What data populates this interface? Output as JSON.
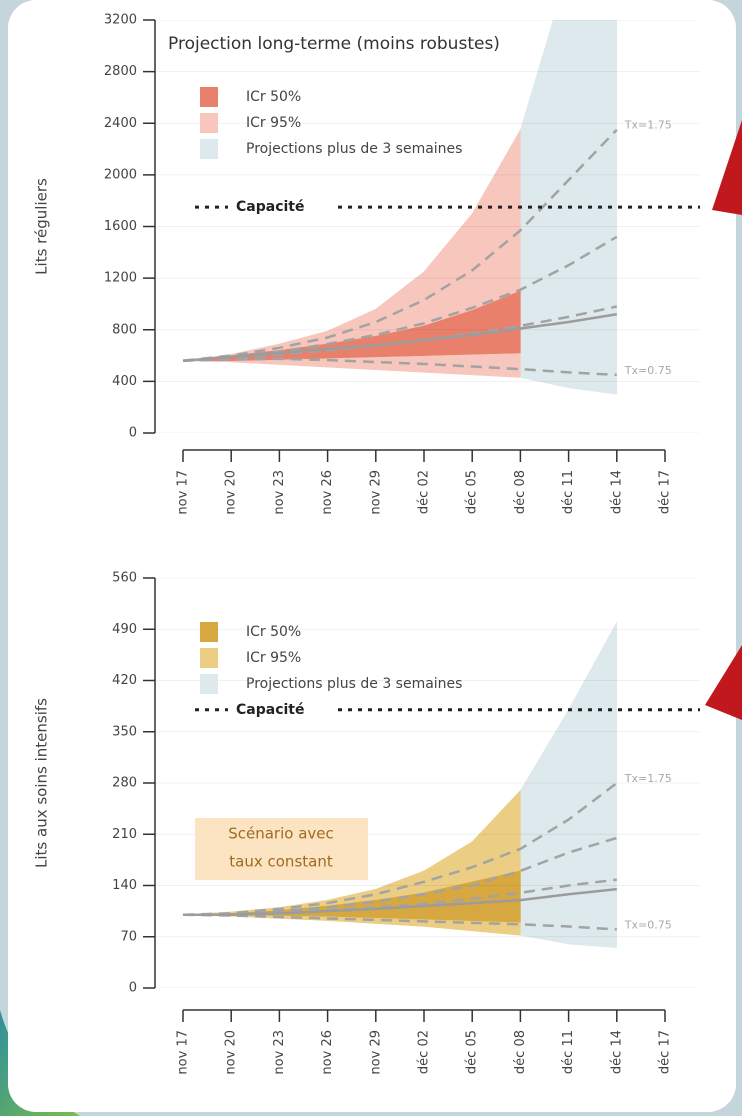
{
  "chart_data": [
    {
      "type": "area",
      "title": "Projection long-terme (moins robustes)",
      "ylabel": "Lits réguliers",
      "categories": [
        "nov 17",
        "nov 20",
        "nov 23",
        "nov 26",
        "nov 29",
        "déc 02",
        "déc 05",
        "déc 08",
        "déc 11",
        "déc 14",
        "déc 17"
      ],
      "ylim": [
        0,
        3200
      ],
      "yticks": [
        0,
        400,
        800,
        1200,
        1600,
        2000,
        2400,
        2800,
        3200
      ],
      "grid": true,
      "capacity": {
        "label": "Capacité",
        "value": 1750
      },
      "series": [
        {
          "name": "ICr 50%",
          "color": "#e9806c",
          "low": [
            560,
            560,
            570,
            580,
            590,
            600,
            610,
            620,
            null,
            null,
            null
          ],
          "high": [
            560,
            600,
            640,
            690,
            750,
            830,
            950,
            1100,
            null,
            null,
            null
          ]
        },
        {
          "name": "ICr 95%",
          "color": "#f7c6bd",
          "low": [
            560,
            550,
            530,
            510,
            490,
            470,
            450,
            430,
            null,
            null,
            null
          ],
          "high": [
            560,
            610,
            690,
            790,
            960,
            1250,
            1700,
            2350,
            null,
            null,
            null
          ]
        },
        {
          "name": "Projections plus de 3 semaines",
          "color": "#dde9ec",
          "low": [
            null,
            null,
            null,
            null,
            null,
            null,
            null,
            430,
            350,
            300,
            null
          ],
          "high": [
            null,
            null,
            null,
            null,
            null,
            null,
            null,
            2350,
            3600,
            5000,
            null
          ]
        }
      ],
      "lines": [
        {
          "style": "dashed",
          "color": "#a3a3a3",
          "label": "Tx=1.75",
          "values": [
            560,
            600,
            660,
            740,
            860,
            1030,
            1260,
            1570,
            1960,
            2350,
            null
          ]
        },
        {
          "style": "dashed",
          "color": "#a3a3a3",
          "values": [
            560,
            590,
            630,
            690,
            760,
            850,
            970,
            1110,
            1300,
            1520,
            null
          ]
        },
        {
          "style": "dashed",
          "color": "#a3a3a3",
          "values": [
            560,
            580,
            610,
            640,
            680,
            720,
            770,
            830,
            900,
            980,
            null
          ]
        },
        {
          "style": "dashed",
          "color": "#a3a3a3",
          "label": "Tx=0.75",
          "values": [
            560,
            570,
            575,
            565,
            550,
            535,
            515,
            495,
            470,
            450,
            null
          ]
        },
        {
          "style": "solid",
          "color": "#9c9c9c",
          "values": [
            560,
            590,
            620,
            650,
            680,
            720,
            760,
            810,
            860,
            920,
            null
          ]
        }
      ]
    },
    {
      "type": "area",
      "ylabel": "Lits aux soins intensifs",
      "categories": [
        "nov 17",
        "nov 20",
        "nov 23",
        "nov 26",
        "nov 29",
        "déc 02",
        "déc 05",
        "déc 08",
        "déc 11",
        "déc 14",
        "déc 17"
      ],
      "ylim": [
        0,
        560
      ],
      "yticks": [
        0,
        70,
        140,
        210,
        280,
        350,
        420,
        490,
        560
      ],
      "grid": true,
      "capacity": {
        "label": "Capacité",
        "value": 380
      },
      "annotation": [
        "Scénario avec",
        "taux constant"
      ],
      "series": [
        {
          "name": "ICr 50%",
          "color": "#d6a83f",
          "low": [
            100,
            100,
            99,
            98,
            96,
            94,
            92,
            90,
            null,
            null,
            null
          ],
          "high": [
            100,
            102,
            106,
            112,
            120,
            130,
            145,
            160,
            null,
            null,
            null
          ]
        },
        {
          "name": "ICr 95%",
          "color": "#ebcd84",
          "low": [
            100,
            98,
            95,
            92,
            88,
            84,
            78,
            72,
            null,
            null,
            null
          ],
          "high": [
            100,
            104,
            110,
            120,
            135,
            160,
            200,
            270,
            null,
            null,
            null
          ]
        },
        {
          "name": "Projections plus de 3 semaines",
          "color": "#dde9ec",
          "low": [
            null,
            null,
            null,
            null,
            null,
            null,
            null,
            72,
            60,
            55,
            null
          ],
          "high": [
            null,
            null,
            null,
            null,
            null,
            null,
            null,
            270,
            380,
            500,
            null
          ]
        }
      ],
      "lines": [
        {
          "style": "dashed",
          "color": "#a3a3a3",
          "label": "Tx=1.75",
          "values": [
            100,
            102,
            108,
            116,
            128,
            145,
            165,
            190,
            230,
            280,
            null
          ]
        },
        {
          "style": "dashed",
          "color": "#a3a3a3",
          "values": [
            100,
            101,
            105,
            110,
            118,
            128,
            140,
            160,
            185,
            205,
            null
          ]
        },
        {
          "style": "dashed",
          "color": "#a3a3a3",
          "values": [
            100,
            100,
            103,
            106,
            110,
            115,
            122,
            130,
            140,
            148,
            null
          ]
        },
        {
          "style": "dashed",
          "color": "#a3a3a3",
          "label": "Tx=0.75",
          "values": [
            100,
            99,
            97,
            95,
            93,
            91,
            89,
            87,
            84,
            80,
            null
          ]
        },
        {
          "style": "solid",
          "color": "#9c9c9c",
          "values": [
            100,
            100,
            102,
            105,
            108,
            112,
            116,
            120,
            128,
            135,
            null
          ]
        }
      ]
    }
  ]
}
